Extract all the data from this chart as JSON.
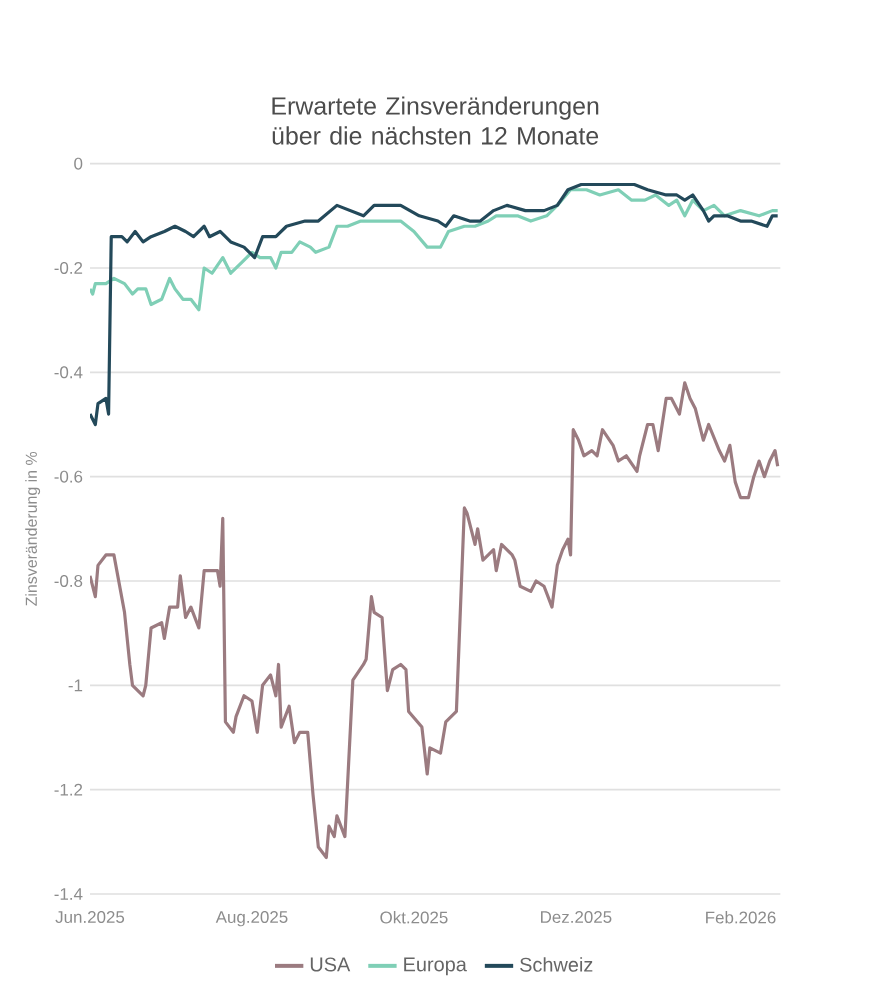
{
  "chart_data": {
    "type": "line",
    "title": "Erwartete Zinsveränderungen über die nächsten 12 Monate",
    "ylabel": "Zinsveränderung in %",
    "xlim": [
      "2025-06-01",
      "2026-02-16"
    ],
    "xticks": [
      {
        "value": "2025-06-01",
        "label": "Jun.2025"
      },
      {
        "value": "2025-08-01",
        "label": "Aug.2025"
      },
      {
        "value": "2025-10-01",
        "label": "Okt.2025"
      },
      {
        "value": "2025-12-01",
        "label": "Dez.2025"
      },
      {
        "value": "2026-02-01",
        "label": "Feb.2026"
      }
    ],
    "ylim": [
      -1.4,
      0
    ],
    "yticks": [
      -1.4,
      -1.2,
      -1,
      -0.8,
      -0.6,
      -0.4,
      -0.2,
      0
    ],
    "grid": "y",
    "legend": "bottom",
    "marker": "none",
    "line_style": "solid",
    "series": [
      {
        "name": "USA",
        "color": "#9b7b80",
        "x": [
          "2025-06-01",
          "2025-06-03",
          "2025-06-04",
          "2025-06-07",
          "2025-06-10",
          "2025-06-14",
          "2025-06-16",
          "2025-06-17",
          "2025-06-21",
          "2025-06-22",
          "2025-06-24",
          "2025-06-28",
          "2025-06-29",
          "2025-07-01",
          "2025-07-04",
          "2025-07-05",
          "2025-07-07",
          "2025-07-09",
          "2025-07-12",
          "2025-07-14",
          "2025-07-19",
          "2025-07-20",
          "2025-07-21",
          "2025-07-22",
          "2025-07-25",
          "2025-07-26",
          "2025-07-29",
          "2025-08-01",
          "2025-08-03",
          "2025-08-05",
          "2025-08-08",
          "2025-08-10",
          "2025-08-11",
          "2025-08-12",
          "2025-08-15",
          "2025-08-17",
          "2025-08-19",
          "2025-08-22",
          "2025-08-24",
          "2025-08-26",
          "2025-08-29",
          "2025-08-30",
          "2025-09-01",
          "2025-09-02",
          "2025-09-05",
          "2025-09-08",
          "2025-09-12",
          "2025-09-13",
          "2025-09-15",
          "2025-09-16",
          "2025-09-19",
          "2025-09-21",
          "2025-09-23",
          "2025-09-26",
          "2025-09-28",
          "2025-09-29",
          "2025-10-04",
          "2025-10-06",
          "2025-10-07",
          "2025-10-11",
          "2025-10-13",
          "2025-10-17",
          "2025-10-20",
          "2025-10-21",
          "2025-10-24",
          "2025-10-25",
          "2025-10-27",
          "2025-10-31",
          "2025-11-01",
          "2025-11-03",
          "2025-11-07",
          "2025-11-08",
          "2025-11-10",
          "2025-11-14",
          "2025-11-16",
          "2025-11-19",
          "2025-11-22",
          "2025-11-24",
          "2025-11-26",
          "2025-11-28",
          "2025-11-29",
          "2025-11-30",
          "2025-12-02",
          "2025-12-04",
          "2025-12-07",
          "2025-12-09",
          "2025-12-11",
          "2025-12-15",
          "2025-12-17",
          "2025-12-20",
          "2025-12-24",
          "2025-12-25",
          "2025-12-28",
          "2025-12-30",
          "2026-01-01",
          "2026-01-04",
          "2026-01-06",
          "2026-01-09",
          "2026-01-11",
          "2026-01-13",
          "2026-01-15",
          "2026-01-18",
          "2026-01-20",
          "2026-01-24",
          "2026-01-26",
          "2026-01-28",
          "2026-01-30",
          "2026-02-01",
          "2026-02-04",
          "2026-02-06",
          "2026-02-08",
          "2026-02-10",
          "2026-02-12",
          "2026-02-14",
          "2026-02-15"
        ],
        "values": [
          -0.79,
          -0.83,
          -0.77,
          -0.75,
          -0.75,
          -0.86,
          -0.96,
          -1.0,
          -1.02,
          -1.0,
          -0.89,
          -0.88,
          -0.91,
          -0.85,
          -0.85,
          -0.79,
          -0.87,
          -0.85,
          -0.89,
          -0.78,
          -0.78,
          -0.81,
          -0.68,
          -1.07,
          -1.09,
          -1.06,
          -1.02,
          -1.03,
          -1.09,
          -1.0,
          -0.98,
          -1.02,
          -0.96,
          -1.08,
          -1.04,
          -1.11,
          -1.09,
          -1.09,
          -1.21,
          -1.31,
          -1.33,
          -1.27,
          -1.29,
          -1.25,
          -1.29,
          -0.99,
          -0.96,
          -0.95,
          -0.83,
          -0.86,
          -0.87,
          -1.01,
          -0.97,
          -0.96,
          -0.97,
          -1.05,
          -1.08,
          -1.17,
          -1.12,
          -1.13,
          -1.07,
          -1.05,
          -0.66,
          -0.67,
          -0.73,
          -0.7,
          -0.76,
          -0.74,
          -0.78,
          -0.73,
          -0.75,
          -0.76,
          -0.81,
          -0.82,
          -0.8,
          -0.81,
          -0.85,
          -0.77,
          -0.74,
          -0.72,
          -0.75,
          -0.51,
          -0.53,
          -0.56,
          -0.55,
          -0.56,
          -0.51,
          -0.54,
          -0.57,
          -0.56,
          -0.59,
          -0.56,
          -0.5,
          -0.5,
          -0.55,
          -0.45,
          -0.45,
          -0.48,
          -0.42,
          -0.45,
          -0.47,
          -0.53,
          -0.5,
          -0.55,
          -0.57,
          -0.54,
          -0.61,
          -0.64,
          -0.64,
          -0.6,
          -0.57,
          -0.6,
          -0.57,
          -0.55,
          -0.58
        ]
      },
      {
        "name": "Europa",
        "color": "#7fcfb6",
        "x": [
          "2025-06-01",
          "2025-06-02",
          "2025-06-03",
          "2025-06-07",
          "2025-06-10",
          "2025-06-14",
          "2025-06-17",
          "2025-06-19",
          "2025-06-22",
          "2025-06-24",
          "2025-06-28",
          "2025-07-01",
          "2025-07-03",
          "2025-07-06",
          "2025-07-09",
          "2025-07-12",
          "2025-07-14",
          "2025-07-17",
          "2025-07-21",
          "2025-07-24",
          "2025-07-28",
          "2025-08-01",
          "2025-08-04",
          "2025-08-08",
          "2025-08-10",
          "2025-08-12",
          "2025-08-16",
          "2025-08-19",
          "2025-08-23",
          "2025-08-25",
          "2025-08-30",
          "2025-09-02",
          "2025-09-06",
          "2025-09-11",
          "2025-09-17",
          "2025-09-26",
          "2025-10-01",
          "2025-10-06",
          "2025-10-11",
          "2025-10-14",
          "2025-10-20",
          "2025-10-24",
          "2025-10-29",
          "2025-11-01",
          "2025-11-05",
          "2025-11-09",
          "2025-11-14",
          "2025-11-20",
          "2025-11-24",
          "2025-11-29",
          "2025-12-05",
          "2025-12-10",
          "2025-12-17",
          "2025-12-22",
          "2025-12-27",
          "2025-12-31",
          "2026-01-05",
          "2026-01-08",
          "2026-01-11",
          "2026-01-14",
          "2026-01-18",
          "2026-01-22",
          "2026-01-26",
          "2026-02-01",
          "2026-02-08",
          "2026-02-13",
          "2026-02-15"
        ],
        "values": [
          -0.24,
          -0.25,
          -0.23,
          -0.23,
          -0.22,
          -0.23,
          -0.25,
          -0.24,
          -0.24,
          -0.27,
          -0.26,
          -0.22,
          -0.24,
          -0.26,
          -0.26,
          -0.28,
          -0.2,
          -0.21,
          -0.18,
          -0.21,
          -0.19,
          -0.17,
          -0.18,
          -0.18,
          -0.2,
          -0.17,
          -0.17,
          -0.15,
          -0.16,
          -0.17,
          -0.16,
          -0.12,
          -0.12,
          -0.11,
          -0.11,
          -0.11,
          -0.13,
          -0.16,
          -0.16,
          -0.13,
          -0.12,
          -0.12,
          -0.11,
          -0.1,
          -0.1,
          -0.1,
          -0.11,
          -0.1,
          -0.08,
          -0.05,
          -0.05,
          -0.06,
          -0.05,
          -0.07,
          -0.07,
          -0.06,
          -0.08,
          -0.07,
          -0.1,
          -0.07,
          -0.09,
          -0.08,
          -0.1,
          -0.09,
          -0.1,
          -0.09,
          -0.09
        ]
      },
      {
        "name": "Schweiz",
        "color": "#23495a",
        "x": [
          "2025-06-01",
          "2025-06-03",
          "2025-06-04",
          "2025-06-07",
          "2025-06-08",
          "2025-06-09",
          "2025-06-13",
          "2025-06-15",
          "2025-06-18",
          "2025-06-21",
          "2025-06-24",
          "2025-06-29",
          "2025-07-03",
          "2025-07-07",
          "2025-07-10",
          "2025-07-14",
          "2025-07-16",
          "2025-07-20",
          "2025-07-24",
          "2025-07-29",
          "2025-08-02",
          "2025-08-05",
          "2025-08-10",
          "2025-08-14",
          "2025-08-21",
          "2025-08-26",
          "2025-09-02",
          "2025-09-07",
          "2025-09-12",
          "2025-09-16",
          "2025-09-26",
          "2025-10-03",
          "2025-10-10",
          "2025-10-13",
          "2025-10-16",
          "2025-10-22",
          "2025-10-26",
          "2025-10-31",
          "2025-11-05",
          "2025-11-12",
          "2025-11-19",
          "2025-11-24",
          "2025-11-28",
          "2025-12-03",
          "2025-12-11",
          "2025-12-23",
          "2025-12-28",
          "2026-01-04",
          "2026-01-08",
          "2026-01-11",
          "2026-01-14",
          "2026-01-18",
          "2026-01-20",
          "2026-01-22",
          "2026-01-27",
          "2026-02-01",
          "2026-02-05",
          "2026-02-11",
          "2026-02-13",
          "2026-02-15"
        ],
        "values": [
          -0.48,
          -0.5,
          -0.46,
          -0.45,
          -0.48,
          -0.14,
          -0.14,
          -0.15,
          -0.13,
          -0.15,
          -0.14,
          -0.13,
          -0.12,
          -0.13,
          -0.14,
          -0.12,
          -0.14,
          -0.13,
          -0.15,
          -0.16,
          -0.18,
          -0.14,
          -0.14,
          -0.12,
          -0.11,
          -0.11,
          -0.08,
          -0.09,
          -0.1,
          -0.08,
          -0.08,
          -0.1,
          -0.11,
          -0.12,
          -0.1,
          -0.11,
          -0.11,
          -0.09,
          -0.08,
          -0.09,
          -0.09,
          -0.08,
          -0.05,
          -0.04,
          -0.04,
          -0.04,
          -0.05,
          -0.06,
          -0.06,
          -0.07,
          -0.06,
          -0.09,
          -0.11,
          -0.1,
          -0.1,
          -0.11,
          -0.11,
          -0.12,
          -0.1,
          -0.1
        ]
      }
    ]
  }
}
